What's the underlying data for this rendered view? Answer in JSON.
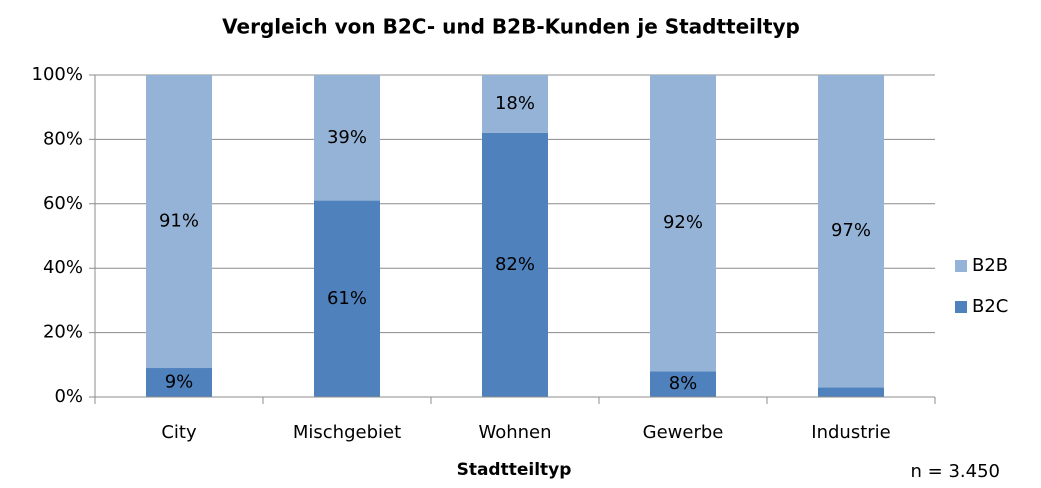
{
  "chart_data": {
    "type": "bar",
    "stacked": true,
    "title": "Vergleich von B2C- und B2B-Kunden je Stadtteiltyp",
    "x_label": "Stadtteiltyp",
    "annotation": "n = 3.450",
    "categories": [
      "City",
      "Mischgebiet",
      "Wohnen",
      "Gewerbe",
      "Industrie"
    ],
    "series": [
      {
        "name": "B2C",
        "color": "#4f81bd",
        "values": [
          9,
          61,
          82,
          8,
          3
        ],
        "value_labels": [
          "9%",
          "61%",
          "82%",
          "8%",
          "3%"
        ]
      },
      {
        "name": "B2B",
        "color": "#95b3d7",
        "values": [
          91,
          39,
          18,
          92,
          97
        ],
        "value_labels": [
          "91%",
          "39%",
          "18%",
          "92%",
          "97%"
        ]
      }
    ],
    "ylim": [
      0,
      100
    ],
    "yticks": [
      {
        "value": 0,
        "label": "0%"
      },
      {
        "value": 20,
        "label": "20%"
      },
      {
        "value": 40,
        "label": "40%"
      },
      {
        "value": 60,
        "label": "60%"
      },
      {
        "value": 80,
        "label": "80%"
      },
      {
        "value": 100,
        "label": "100%"
      }
    ],
    "grid": true,
    "legend": "right"
  }
}
